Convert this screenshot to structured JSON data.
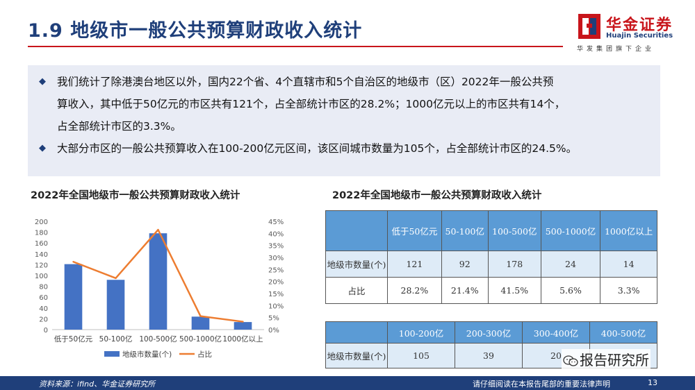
{
  "header": {
    "title": "1.9 地级市一般公共预算财政收入统计",
    "logo": {
      "name_cn": "华金证券",
      "name_en": "Huajin Securities",
      "slogan": "华发集团旗下企业"
    }
  },
  "summary": {
    "bullets": [
      "我们统计了除港澳台地区以外，国内22个省、4个直辖市和5个自治区的地级市（区）2022年一般公共预\n算收入，其中低于50亿元的市区共有121个，占全部统计市区的28.2%；1000亿元以上的市区共有14个，\n占全部统计市区的3.3%。",
      "大部分市区的一般公共预算收入在100-200亿元区间，该区间城市数量为105个，占全部统计市区的24.5%。"
    ]
  },
  "chart_title": "2022年全国地级市一般公共预算财政收入统计",
  "chart_data": {
    "type": "bar",
    "categories": [
      "低于50亿元",
      "50-100亿",
      "100-500亿",
      "500-1000亿",
      "1000亿以上"
    ],
    "series": [
      {
        "name": "地级市数量(个)",
        "type": "bar",
        "axis": "left",
        "values": [
          121,
          92,
          178,
          24,
          14
        ],
        "color": "#4472c4"
      },
      {
        "name": "占比",
        "type": "line",
        "axis": "right",
        "values": [
          28.2,
          21.4,
          41.5,
          5.6,
          3.3
        ],
        "color": "#ed7d31"
      }
    ],
    "y_left": {
      "min": 0,
      "max": 200,
      "ticks": [
        "0",
        "20",
        "40",
        "60",
        "80",
        "100",
        "120",
        "140",
        "160",
        "180",
        "200"
      ]
    },
    "y_right": {
      "min": 0,
      "max": 45,
      "ticks": [
        "0%",
        "5%",
        "10%",
        "15%",
        "20%",
        "25%",
        "30%",
        "35%",
        "40%",
        "45%"
      ]
    },
    "grid": false,
    "legend": "bottom"
  },
  "table_title": "2022年全国地级市一般公共预算财政收入统计",
  "table1": {
    "headers": [
      "",
      "低于50亿元",
      "50-100亿",
      "100-500亿",
      "500-1000亿",
      "1000亿以上"
    ],
    "rows": [
      {
        "label": "地级市数量(个)",
        "values": [
          "121",
          "92",
          "178",
          "24",
          "14"
        ]
      },
      {
        "label": "占比",
        "values": [
          "28.2%",
          "21.4%",
          "41.5%",
          "5.6%",
          "3.3%"
        ]
      }
    ]
  },
  "table2": {
    "headers": [
      "",
      "100-200亿",
      "200-300亿",
      "300-400亿",
      "400-500亿"
    ],
    "rows": [
      {
        "label": "地级市数量(个)",
        "values": [
          "105",
          "39",
          "20",
          ""
        ]
      }
    ]
  },
  "watermark": "报告研究所",
  "footer": {
    "source": "资料来源：ifind、华金证券研究所",
    "note": "请仔细阅读在本报告尾部的重要法律声明",
    "page": "13"
  },
  "colors": {
    "primary": "#1f3f7a",
    "accent": "#c8151b",
    "bar": "#4472c4",
    "line": "#ed7d31",
    "table_head": "#5b9bd5",
    "table_band": "#deebf7"
  }
}
